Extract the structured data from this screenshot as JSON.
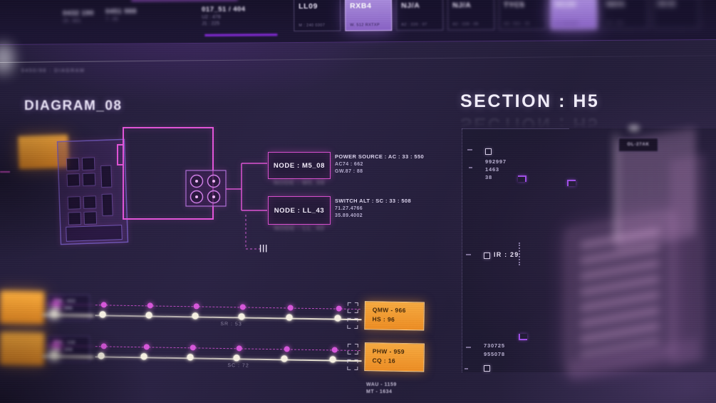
{
  "colors": {
    "accent_pink": "#d94fd6",
    "accent_purple": "#9b79d6",
    "orange": "#f49a2e",
    "text": "#efeafa"
  },
  "top_bar": {
    "label_a": "0432 190",
    "label_a_sub": "25 : 801",
    "label_b": "0451 988",
    "label_b_sub": "7 : 05",
    "readout_title": "017_51 / 404",
    "readout_line1": "U2 : 478",
    "readout_line2": "J1 : 225",
    "cards": [
      {
        "label": "LL09",
        "sub": "M : 240 0307",
        "active": false,
        "blur": 0.8
      },
      {
        "label": "RXB4",
        "sub": "W. 512 RXTXP",
        "active": true,
        "blur": 0.6
      },
      {
        "label": "NJ/A",
        "sub": "A2 : 220 : 07",
        "active": false,
        "blur": 1.3
      },
      {
        "label": "NJ/A",
        "sub": "A2 : 228 : 09",
        "active": false,
        "blur": 1.7
      },
      {
        "label": "TYC5",
        "sub": "A3 : 551 : 20",
        "active": false,
        "blur": 2.4
      },
      {
        "label": "HC29",
        "sub": "W. 140 RXT",
        "active": true,
        "blur": 3.6
      },
      {
        "label": "N0/A",
        "sub": "A2 : 204",
        "active": false,
        "blur": 3.6
      },
      {
        "label": "09-B",
        "sub": "",
        "active": false,
        "blur": 4.2
      }
    ]
  },
  "left": {
    "header": "0450/98 : DIAGRAM",
    "title": "DIAGRAM_08",
    "nodes": [
      {
        "label": "NODE : M5_08"
      },
      {
        "label": "NODE : LL_43"
      }
    ],
    "info1": {
      "title": "POWER SOURCE : AC : 33 : 550",
      "line1": "AC74 : 662",
      "line2": "GW.87 : 88"
    },
    "info2": {
      "title": "SWITCH ALT : SC : 33 : 508",
      "line1": "71.27.4766",
      "line2": "35.89.4002"
    }
  },
  "icons": {
    "node_marker": "|||"
  },
  "sliders": {
    "rows": [
      {
        "label": "SR : 53",
        "badge_line1": "QMW - 966",
        "badge_line2": "HS : 96",
        "side_line1": "735 : 023",
        "side_line2": "41 : 996",
        "white_dots": [
          82,
          147,
          212,
          277,
          344,
          412
        ],
        "pink_dots": [
          84,
          149,
          214,
          279,
          346,
          414
        ],
        "ghost_white": [
          14
        ],
        "ghost_pink": [
          17
        ]
      },
      {
        "label": "SC : 72",
        "badge_line1": "PHW - 959",
        "badge_line2": "CQ : 16",
        "side_line1": "694 : 118",
        "side_line2": "25 : 408",
        "white_dots": [
          80,
          140,
          205,
          270,
          337,
          405
        ],
        "pink_dots": [
          84,
          144,
          209,
          274,
          341,
          408
        ],
        "ghost_white": [
          14
        ],
        "ghost_pink": [
          17
        ]
      }
    ],
    "footer_line1": "WAU - 1159",
    "footer_line2": "MT - 1634"
  },
  "right": {
    "title": "SECTION : H5",
    "top_values": [
      "992997",
      "1463",
      "38"
    ],
    "mid_label": "IR : 29",
    "bottom_values": [
      "730725",
      "955078"
    ],
    "holo_tag": "OL-27AK"
  }
}
